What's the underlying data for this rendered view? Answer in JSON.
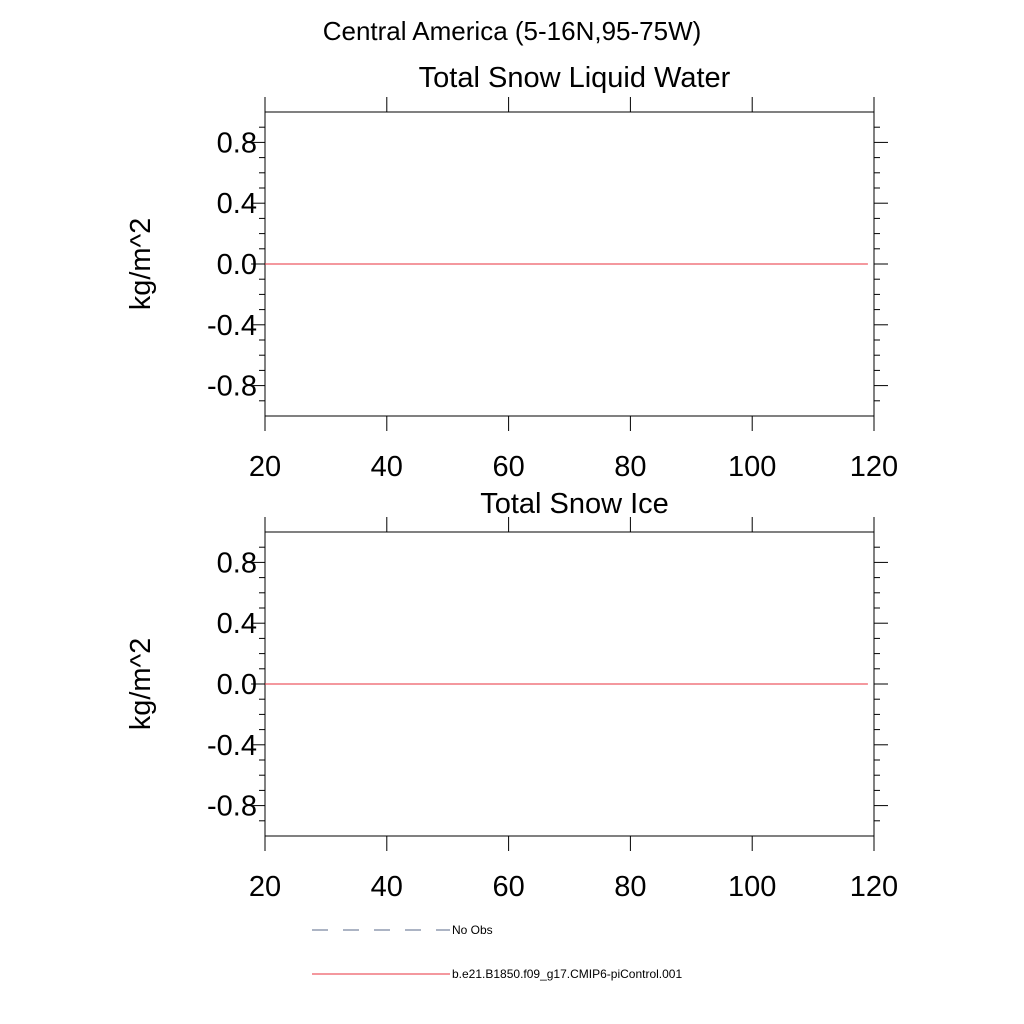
{
  "figure": {
    "title": "Central America (5-16N,95-75W)"
  },
  "chart_data": [
    {
      "type": "line",
      "title": "Total Snow Liquid Water",
      "xlabel": "",
      "ylabel": "kg/m^2",
      "xlim": [
        20,
        120
      ],
      "ylim": [
        -1.0,
        1.0
      ],
      "x_ticks": [
        20,
        40,
        60,
        80,
        100,
        120
      ],
      "x_tick_labels": [
        "20",
        "40",
        "60",
        "80",
        "100",
        "120"
      ],
      "y_ticks": [
        0.8,
        0.4,
        0.0,
        -0.4,
        -0.8
      ],
      "y_tick_labels": [
        "0.8",
        "0.4",
        "0.0",
        "-0.4",
        "-0.8"
      ],
      "grid": false,
      "series": [
        {
          "name": "b.e21.B1850.f09_g17.CMIP6-piControl.001",
          "color": "#e8323c",
          "dash": "solid",
          "x": [
            20,
            40,
            60,
            80,
            100,
            119
          ],
          "values": [
            0,
            0,
            0,
            0,
            0,
            0
          ]
        }
      ]
    },
    {
      "type": "line",
      "title": "Total Snow Ice",
      "xlabel": "",
      "ylabel": "kg/m^2",
      "xlim": [
        20,
        120
      ],
      "ylim": [
        -1.0,
        1.0
      ],
      "x_ticks": [
        20,
        40,
        60,
        80,
        100,
        120
      ],
      "x_tick_labels": [
        "20",
        "40",
        "60",
        "80",
        "100",
        "120"
      ],
      "y_ticks": [
        0.8,
        0.4,
        0.0,
        -0.4,
        -0.8
      ],
      "y_tick_labels": [
        "0.8",
        "0.4",
        "0.0",
        "-0.4",
        "-0.8"
      ],
      "grid": false,
      "series": [
        {
          "name": "b.e21.B1850.f09_g17.CMIP6-piControl.001",
          "color": "#e8323c",
          "dash": "solid",
          "x": [
            20,
            40,
            60,
            80,
            100,
            119
          ],
          "values": [
            0,
            0,
            0,
            0,
            0,
            0
          ]
        }
      ]
    }
  ],
  "legend": {
    "placement": "bottom",
    "entries": [
      {
        "label": "No Obs",
        "color": "#5a6a8a",
        "dash": "dashed"
      },
      {
        "label": "b.e21.B1850.f09_g17.CMIP6-piControl.001",
        "color": "#e8323c",
        "dash": "solid"
      }
    ]
  }
}
